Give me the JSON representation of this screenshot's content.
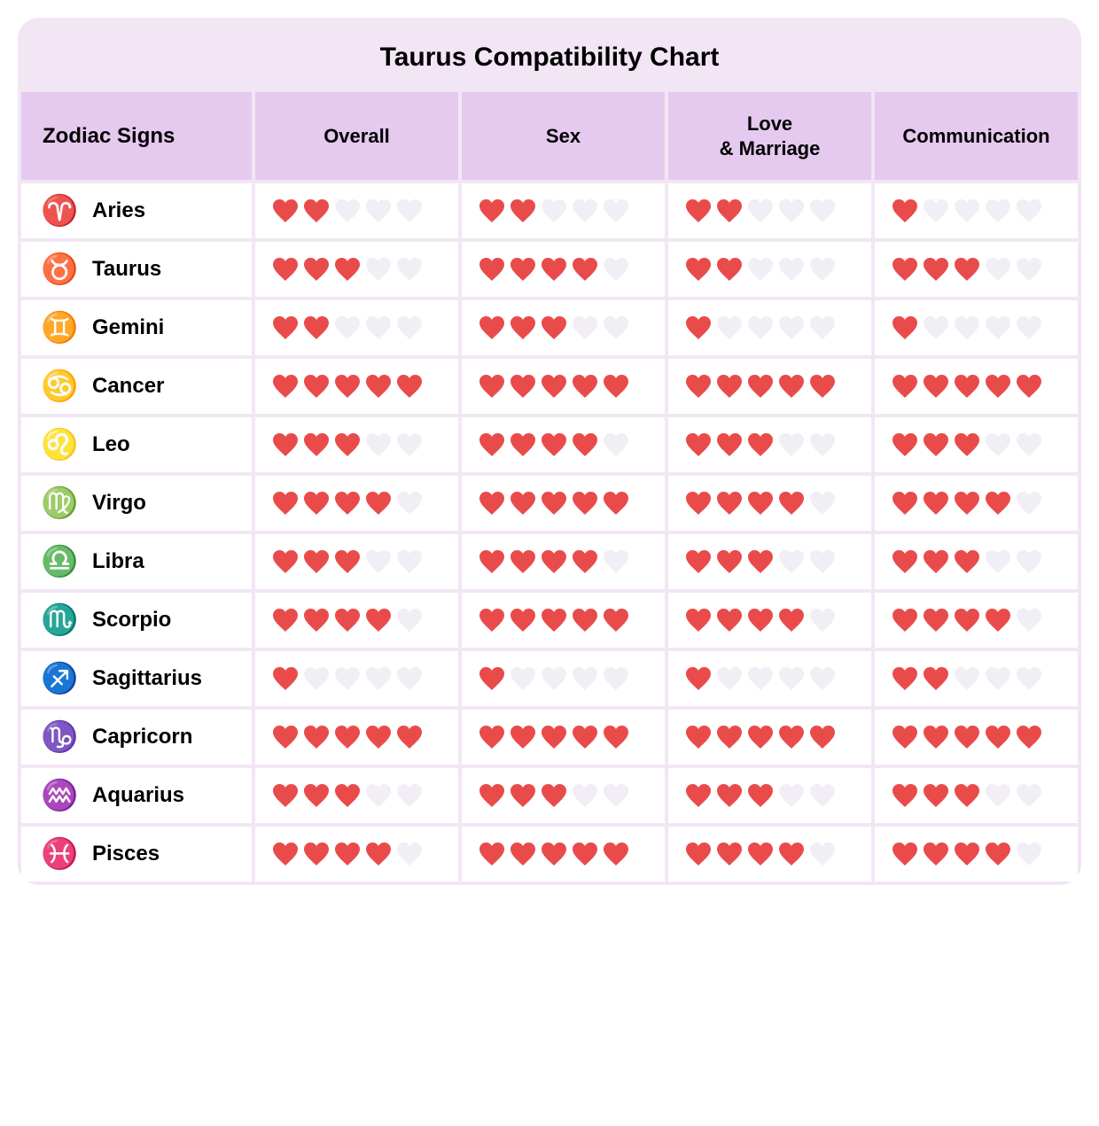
{
  "chart": {
    "title": "Taurus Compatibility Chart",
    "header_bg": "#e5c9ee",
    "title_bg": "#e5c9ee",
    "grid_bg": "#f2e6f5",
    "row_bg": "#ffffff",
    "border_radius": 24,
    "icon_color": "#9b4fc7",
    "heart_filled_color": "#e94b4b",
    "heart_empty_color": "#f1eef6",
    "max_hearts": 5,
    "columns": [
      {
        "key": "sign",
        "label": "Zodiac Signs"
      },
      {
        "key": "overall",
        "label": "Overall"
      },
      {
        "key": "sex",
        "label": "Sex"
      },
      {
        "key": "love",
        "label": "Love\n& Marriage"
      },
      {
        "key": "communication",
        "label": "Communication"
      }
    ],
    "rows": [
      {
        "sign": "Aries",
        "glyph": "♈",
        "overall": 2,
        "sex": 2,
        "love": 2,
        "communication": 1
      },
      {
        "sign": "Taurus",
        "glyph": "♉",
        "overall": 3,
        "sex": 4,
        "love": 2,
        "communication": 3
      },
      {
        "sign": "Gemini",
        "glyph": "♊",
        "overall": 2,
        "sex": 3,
        "love": 1,
        "communication": 1
      },
      {
        "sign": "Cancer",
        "glyph": "♋",
        "overall": 5,
        "sex": 5,
        "love": 5,
        "communication": 5
      },
      {
        "sign": "Leo",
        "glyph": "♌",
        "overall": 3,
        "sex": 4,
        "love": 3,
        "communication": 3
      },
      {
        "sign": "Virgo",
        "glyph": "♍",
        "overall": 4,
        "sex": 5,
        "love": 4,
        "communication": 4
      },
      {
        "sign": "Libra",
        "glyph": "♎",
        "overall": 3,
        "sex": 4,
        "love": 3,
        "communication": 3
      },
      {
        "sign": "Scorpio",
        "glyph": "♏",
        "overall": 4,
        "sex": 5,
        "love": 4,
        "communication": 4
      },
      {
        "sign": "Sagittarius",
        "glyph": "♐",
        "overall": 1,
        "sex": 1,
        "love": 1,
        "communication": 2
      },
      {
        "sign": "Capricorn",
        "glyph": "♑",
        "overall": 5,
        "sex": 5,
        "love": 5,
        "communication": 5
      },
      {
        "sign": "Aquarius",
        "glyph": "♒",
        "overall": 3,
        "sex": 3,
        "love": 3,
        "communication": 3
      },
      {
        "sign": "Pisces",
        "glyph": "♓",
        "overall": 4,
        "sex": 5,
        "love": 4,
        "communication": 4
      }
    ]
  }
}
